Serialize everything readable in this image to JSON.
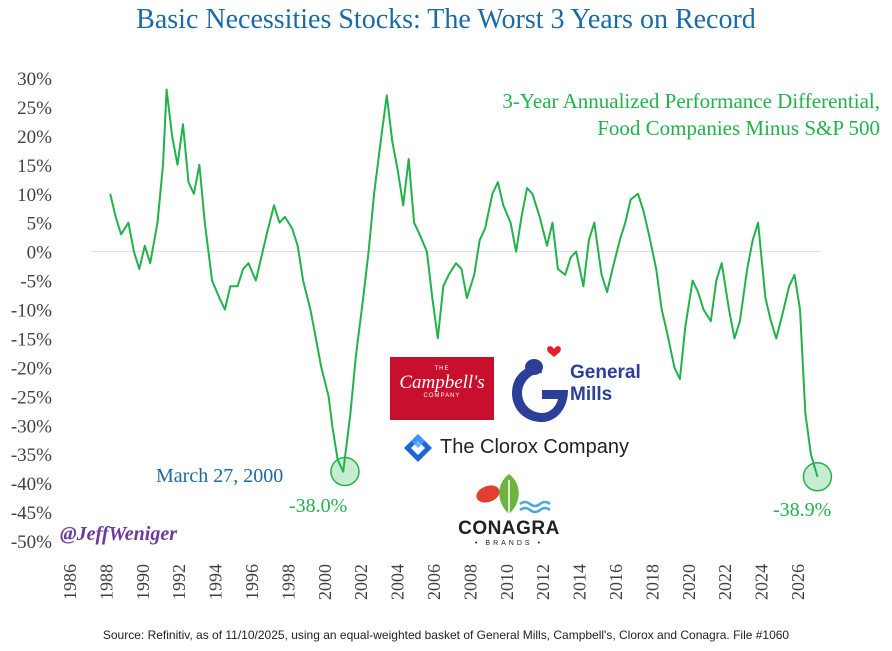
{
  "chart_data": {
    "type": "line",
    "title": "Basic Necessities Stocks: The Worst 3 Years on Record",
    "series_label_lines": [
      "3-Year Annualized Performance Differential,",
      "Food Companies Minus S&P 500"
    ],
    "ylim": [
      -50,
      30
    ],
    "xlim": [
      1986,
      2026
    ],
    "y_ticks": [
      30,
      25,
      20,
      15,
      10,
      5,
      0,
      -5,
      -10,
      -15,
      -20,
      -25,
      -30,
      -35,
      -40,
      -45,
      -50
    ],
    "y_tick_labels": [
      "30%",
      "25%",
      "20%",
      "15%",
      "10%",
      "5%",
      "0%",
      "-5%",
      "-10%",
      "-15%",
      "-20%",
      "-25%",
      "-30%",
      "-35%",
      "-40%",
      "-45%",
      "-50%"
    ],
    "x_tick_labels": [
      "1986",
      "1988",
      "1990",
      "1992",
      "1994",
      "1996",
      "1998",
      "2000",
      "2002",
      "2004",
      "2006",
      "2008",
      "2010",
      "2012",
      "2014",
      "2016",
      "2018",
      "2020",
      "2022",
      "2024",
      "2026"
    ],
    "zero_line": true,
    "series": [
      {
        "color": "#22b24c",
        "x": [
          1987.0,
          1987.3,
          1987.6,
          1988.0,
          1988.3,
          1988.6,
          1988.9,
          1989.2,
          1989.6,
          1989.9,
          1990.1,
          1990.4,
          1990.7,
          1991.0,
          1991.3,
          1991.6,
          1991.9,
          1992.2,
          1992.6,
          1993.0,
          1993.3,
          1993.6,
          1994.0,
          1994.3,
          1994.6,
          1995.0,
          1995.3,
          1995.6,
          1996.0,
          1996.3,
          1996.6,
          1997.0,
          1997.3,
          1997.6,
          1998.0,
          1998.3,
          1998.6,
          1999.0,
          1999.2,
          1999.5,
          1999.8,
          2000.2,
          2000.5,
          2000.9,
          2001.2,
          2001.5,
          2001.9,
          2002.2,
          2002.5,
          2002.8,
          2003.1,
          2003.4,
          2003.7,
          2004.0,
          2004.4,
          2004.7,
          2005.0,
          2005.3,
          2005.6,
          2006.0,
          2006.3,
          2006.6,
          2007.0,
          2007.3,
          2007.6,
          2008.0,
          2008.3,
          2008.6,
          2009.0,
          2009.3,
          2009.6,
          2009.9,
          2010.2,
          2010.6,
          2011.0,
          2011.3,
          2011.6,
          2012.0,
          2012.3,
          2012.6,
          2013.0,
          2013.3,
          2013.6,
          2014.0,
          2014.3,
          2014.6,
          2015.0,
          2015.3,
          2015.6,
          2016.0,
          2016.3,
          2016.6,
          2017.0,
          2017.3,
          2017.6,
          2018.0,
          2018.3,
          2018.6,
          2019.0,
          2019.3,
          2019.6,
          2020.0,
          2020.3,
          2020.6,
          2021.0,
          2021.3,
          2021.6,
          2022.0,
          2022.3,
          2022.6,
          2023.0,
          2023.3,
          2023.6,
          2024.0,
          2024.3,
          2024.6,
          2024.9,
          2025.2,
          2025.5,
          2025.86
        ],
        "y": [
          10,
          6,
          3,
          5,
          0,
          -3,
          1,
          -2,
          5,
          15,
          28,
          20,
          15,
          22,
          12,
          10,
          15,
          5,
          -5,
          -8,
          -10,
          -6,
          -6,
          -3,
          -2,
          -5,
          -1,
          3,
          8,
          5,
          6,
          4,
          1,
          -5,
          -10,
          -15,
          -20,
          -25,
          -30,
          -36,
          -38,
          -28,
          -18,
          -8,
          0,
          10,
          20,
          27,
          19,
          14,
          8,
          16,
          5,
          3,
          0,
          -8,
          -15,
          -6,
          -4,
          -2,
          -3,
          -8,
          -4,
          2,
          4,
          10,
          12,
          8,
          5,
          0,
          6,
          11,
          10,
          6,
          1,
          5,
          -3,
          -4,
          -1,
          0,
          -6,
          2,
          5,
          -4,
          -7,
          -3,
          2,
          5,
          9,
          10,
          7,
          3,
          -3,
          -10,
          -14,
          -20,
          -22,
          -13,
          -5,
          -7,
          -10,
          -12,
          -5,
          -2,
          -10,
          -15,
          -12,
          -3,
          2,
          5,
          -8,
          -12,
          -15,
          -10,
          -6,
          -4,
          -10,
          -28,
          -35,
          -38.9
        ]
      }
    ],
    "annotations": {
      "trough1_date": "March 27, 2000",
      "trough1_value": "-38.0%",
      "trough1_x": 1999.9,
      "trough1_y": -38.0,
      "trough2_value": "-38.9%",
      "trough2_x": 2025.86,
      "trough2_y": -38.9
    }
  },
  "handle": "@JeffWeniger",
  "source": "Source: Refinitiv, as of 11/10/2025, using an equal-weighted basket of General Mills, Campbell's, Clorox and Conagra. File #1060",
  "logos": {
    "campbells_top": "THE",
    "campbells_name": "Campbell's",
    "campbells_bottom": "COMPANY",
    "general_mills_line1": "General",
    "general_mills_line2": "Mills",
    "clorox": "The Clorox Company",
    "conagra": "CONAGRA",
    "conagra_sub": "• BRANDS •"
  },
  "colors": {
    "title": "#1a6aa8",
    "series": "#22b24c",
    "handle": "#6a3a9e",
    "campbells": "#c8102e",
    "general_mills": "#2b3f99"
  }
}
